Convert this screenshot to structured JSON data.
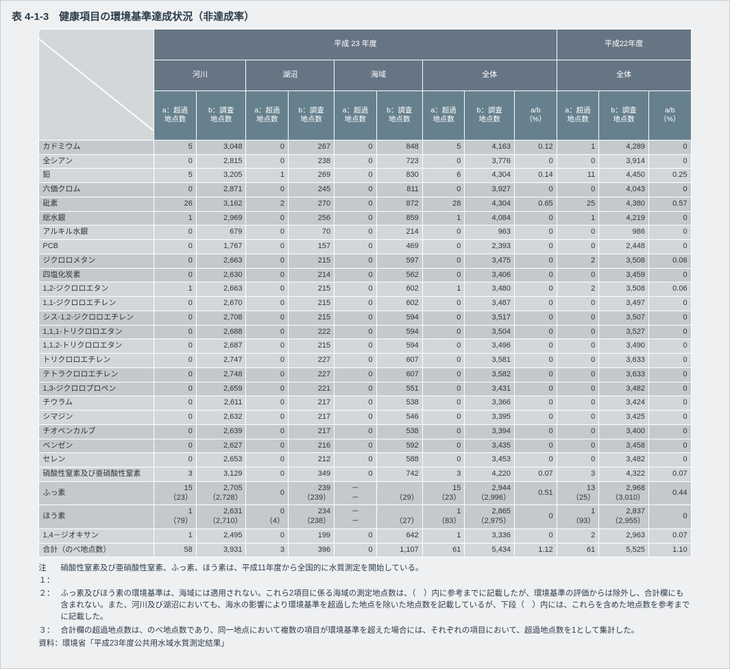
{
  "title": "表 4-1-3　健康項目の環境基準達成状況（非達成率）",
  "columns_top_y23": "平成 23 年度",
  "columns_top_y22": "平成22年度",
  "col_groups": [
    "河川",
    "湖沼",
    "海域",
    "全体",
    "全体"
  ],
  "sub_a": "a：超過\n地点数",
  "sub_b": "b：調査\n地点数",
  "sub_ab": "a/b\n（%）",
  "row_labels": [
    "カドミウム",
    "全シアン",
    "鉛",
    "六価クロム",
    "砒素",
    "総水銀",
    "アルキル水銀",
    "PCB",
    "ジクロロメタン",
    "四塩化炭素",
    "1,2-ジクロロエタン",
    "1,1-ジクロロエチレン",
    "シス-1,2-ジクロロエチレン",
    "1,1,1-トリクロロエタン",
    "1,1,2-トリクロロエタン",
    "トリクロロエチレン",
    "テトラクロロエチレン",
    "1,3-ジクロロプロペン",
    "チウラム",
    "シマジン",
    "チオベンカルブ",
    "ベンゼン",
    "セレン",
    "硝酸性窒素及び亜硝酸性窒素",
    "ふっ素",
    "ほう素",
    "1,4－ジオキサン",
    "合計（のべ地点数）"
  ],
  "rows": [
    [
      "5",
      "3,048",
      "0",
      "267",
      "0",
      "848",
      "5",
      "4,163",
      "0.12",
      "1",
      "4,289",
      "0"
    ],
    [
      "0",
      "2,815",
      "0",
      "238",
      "0",
      "723",
      "0",
      "3,776",
      "0",
      "0",
      "3,914",
      "0"
    ],
    [
      "5",
      "3,205",
      "1",
      "269",
      "0",
      "830",
      "6",
      "4,304",
      "0.14",
      "11",
      "4,450",
      "0.25"
    ],
    [
      "0",
      "2,871",
      "0",
      "245",
      "0",
      "811",
      "0",
      "3,927",
      "0",
      "0",
      "4,043",
      "0"
    ],
    [
      "26",
      "3,162",
      "2",
      "270",
      "0",
      "872",
      "28",
      "4,304",
      "0.65",
      "25",
      "4,380",
      "0.57"
    ],
    [
      "1",
      "2,969",
      "0",
      "256",
      "0",
      "859",
      "1",
      "4,084",
      "0",
      "1",
      "4,219",
      "0"
    ],
    [
      "0",
      "679",
      "0",
      "70",
      "0",
      "214",
      "0",
      "963",
      "0",
      "0",
      "986",
      "0"
    ],
    [
      "0",
      "1,767",
      "0",
      "157",
      "0",
      "469",
      "0",
      "2,393",
      "0",
      "0",
      "2,448",
      "0"
    ],
    [
      "0",
      "2,663",
      "0",
      "215",
      "0",
      "597",
      "0",
      "3,475",
      "0",
      "2",
      "3,508",
      "0.06"
    ],
    [
      "0",
      "2,630",
      "0",
      "214",
      "0",
      "562",
      "0",
      "3,406",
      "0",
      "0",
      "3,459",
      "0"
    ],
    [
      "1",
      "2,663",
      "0",
      "215",
      "0",
      "602",
      "1",
      "3,480",
      "0",
      "2",
      "3,508",
      "0.06"
    ],
    [
      "0",
      "2,670",
      "0",
      "215",
      "0",
      "602",
      "0",
      "3,487",
      "0",
      "0",
      "3,497",
      "0"
    ],
    [
      "0",
      "2,708",
      "0",
      "215",
      "0",
      "594",
      "0",
      "3,517",
      "0",
      "0",
      "3,507",
      "0"
    ],
    [
      "0",
      "2,688",
      "0",
      "222",
      "0",
      "594",
      "0",
      "3,504",
      "0",
      "0",
      "3,527",
      "0"
    ],
    [
      "0",
      "2,687",
      "0",
      "215",
      "0",
      "594",
      "0",
      "3,496",
      "0",
      "0",
      "3,490",
      "0"
    ],
    [
      "0",
      "2,747",
      "0",
      "227",
      "0",
      "607",
      "0",
      "3,581",
      "0",
      "0",
      "3,633",
      "0"
    ],
    [
      "0",
      "2,748",
      "0",
      "227",
      "0",
      "607",
      "0",
      "3,582",
      "0",
      "0",
      "3,633",
      "0"
    ],
    [
      "0",
      "2,659",
      "0",
      "221",
      "0",
      "551",
      "0",
      "3,431",
      "0",
      "0",
      "3,482",
      "0"
    ],
    [
      "0",
      "2,611",
      "0",
      "217",
      "0",
      "538",
      "0",
      "3,366",
      "0",
      "0",
      "3,424",
      "0"
    ],
    [
      "0",
      "2,632",
      "0",
      "217",
      "0",
      "546",
      "0",
      "3,395",
      "0",
      "0",
      "3,425",
      "0"
    ],
    [
      "0",
      "2,639",
      "0",
      "217",
      "0",
      "538",
      "0",
      "3,394",
      "0",
      "0",
      "3,400",
      "0"
    ],
    [
      "0",
      "2,627",
      "0",
      "216",
      "0",
      "592",
      "0",
      "3,435",
      "0",
      "0",
      "3,458",
      "0"
    ],
    [
      "0",
      "2,653",
      "0",
      "212",
      "0",
      "588",
      "0",
      "3,453",
      "0",
      "0",
      "3,482",
      "0"
    ],
    [
      "3",
      "3,129",
      "0",
      "349",
      "0",
      "742",
      "3",
      "4,220",
      "0.07",
      "3",
      "4,322",
      "0.07"
    ],
    [
      "15\n（23）",
      "2,705\n（2,728）",
      "0",
      "239\n（239）",
      "－\n－",
      "\n（29）",
      "15\n（23）",
      "2,944\n（2,996）",
      "0.51",
      "13\n（25）",
      "2,968\n（3,010）",
      "0.44"
    ],
    [
      "1\n（79）",
      "2,631\n（2,710）",
      "0\n（4）",
      "234\n（238）",
      "－\n－",
      "\n（27）",
      "1\n（83）",
      "2,865\n（2,975）",
      "0",
      "1\n（93）",
      "2,837\n（2,955）",
      "0"
    ],
    [
      "1",
      "2,495",
      "0",
      "199",
      "0",
      "642",
      "1",
      "3,336",
      "0",
      "2",
      "2,963",
      "0.07"
    ],
    [
      "58",
      "3,931",
      "3",
      "396",
      "0",
      "1,107",
      "61",
      "5,434",
      "1.12",
      "61",
      "5,525",
      "1.10"
    ]
  ],
  "shade_rows": [
    0,
    3,
    4,
    5,
    8,
    9,
    12,
    13,
    16,
    17,
    20,
    21,
    24,
    25
  ],
  "notes": [
    {
      "tag": "注１：",
      "text": "硝酸性窒素及び亜硝酸性窒素、ふっ素、ほう素は、平成11年度から全国的に水質測定を開始している。"
    },
    {
      "tag": "２：",
      "text": "ふっ素及びほう素の環境基準は、海域には適用されない。これら2項目に係る海域の測定地点数は、（　）内に参考までに記載したが、環境基準の評価からは除外し、合計欄にも含まれない。また、河川及び湖沼においても、海水の影響により環境基準を超過した地点を除いた地点数を記載しているが、下段（　）内には、これらを含めた地点数を参考までに記載した。"
    },
    {
      "tag": "３：",
      "text": "合計欄の超過地点数は、のべ地点数であり、同一地点において複数の項目が環境基準を超えた場合には、それぞれの項目において、超過地点数を1として集計した。"
    }
  ],
  "source": "資料：環境省「平成23年度公共用水域水質測定結果」",
  "style": {
    "header_bg": "#667584",
    "subheader_bg": "#66818d",
    "row_bg": "#d3d7da",
    "row_shade_bg": "#c4c9cd",
    "border_color": "#ffffff",
    "page_bg": "#eef0f2",
    "text_color": "#2d3b4a",
    "font_family": "Hiragino Kaku Gothic ProN, Meiryo, sans-serif"
  }
}
